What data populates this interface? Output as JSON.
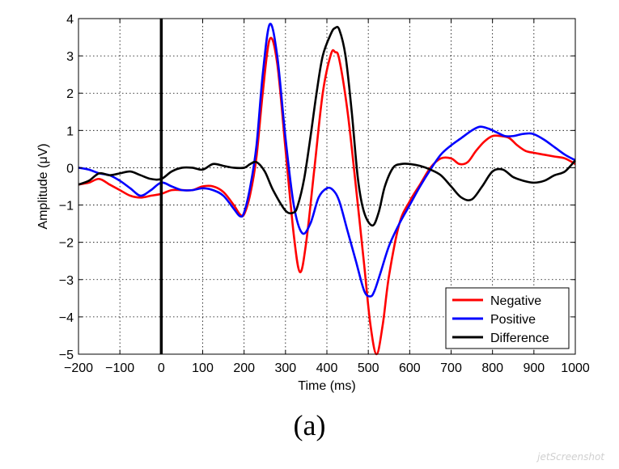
{
  "caption": "(a)",
  "watermark": "jetScreenshot",
  "chart_data": {
    "type": "line",
    "xlabel": "Time (ms)",
    "ylabel": "Amplitude (μV)",
    "xlim": [
      -200,
      1000
    ],
    "ylim": [
      -5,
      4
    ],
    "xticks": [
      -200,
      -100,
      0,
      100,
      200,
      300,
      400,
      500,
      600,
      700,
      800,
      900,
      1000
    ],
    "yticks": [
      -5,
      -4,
      -3,
      -2,
      -1,
      0,
      1,
      2,
      3,
      4
    ],
    "xtick_labels": [
      "−200",
      "−100",
      "0",
      "100",
      "200",
      "300",
      "400",
      "500",
      "600",
      "700",
      "800",
      "900",
      "1000"
    ],
    "ytick_labels": [
      "−5",
      "−4",
      "−3",
      "−2",
      "−1",
      "0",
      "1",
      "2",
      "3",
      "4"
    ],
    "grid": true,
    "legend_position": "bottom-right",
    "vline_x": 0,
    "series": [
      {
        "name": "Negative",
        "color": "#ff0000",
        "x": [
          -200,
          -175,
          -150,
          -125,
          -100,
          -75,
          -50,
          -25,
          0,
          25,
          50,
          75,
          100,
          125,
          150,
          175,
          190,
          200,
          215,
          230,
          245,
          262,
          280,
          300,
          320,
          335,
          350,
          370,
          390,
          410,
          420,
          430,
          450,
          470,
          490,
          505,
          520,
          535,
          550,
          575,
          600,
          625,
          650,
          675,
          700,
          720,
          740,
          760,
          780,
          800,
          820,
          840,
          860,
          880,
          900,
          925,
          950,
          975,
          1000
        ],
        "y": [
          -0.45,
          -0.4,
          -0.3,
          -0.45,
          -0.6,
          -0.75,
          -0.8,
          -0.75,
          -0.7,
          -0.6,
          -0.6,
          -0.6,
          -0.5,
          -0.5,
          -0.65,
          -1.0,
          -1.25,
          -1.25,
          -0.7,
          0.3,
          2.0,
          3.45,
          2.8,
          0.5,
          -1.8,
          -2.8,
          -2.0,
          0.0,
          2.0,
          3.05,
          3.1,
          2.9,
          1.5,
          -0.5,
          -2.6,
          -4.2,
          -5.0,
          -4.2,
          -2.9,
          -1.5,
          -0.9,
          -0.45,
          0.0,
          0.25,
          0.25,
          0.1,
          0.15,
          0.45,
          0.7,
          0.85,
          0.85,
          0.8,
          0.6,
          0.45,
          0.4,
          0.35,
          0.3,
          0.25,
          0.1
        ]
      },
      {
        "name": "Positive",
        "color": "#0000ff",
        "x": [
          -200,
          -175,
          -150,
          -125,
          -100,
          -75,
          -50,
          -25,
          0,
          25,
          50,
          75,
          100,
          125,
          150,
          175,
          190,
          200,
          215,
          230,
          245,
          262,
          280,
          300,
          320,
          340,
          360,
          380,
          400,
          415,
          430,
          450,
          470,
          490,
          505,
          515,
          530,
          550,
          575,
          600,
          625,
          650,
          675,
          700,
          725,
          750,
          770,
          790,
          810,
          830,
          850,
          870,
          885,
          900,
          925,
          950,
          975,
          1000
        ],
        "y": [
          0.0,
          -0.05,
          -0.15,
          -0.2,
          -0.35,
          -0.55,
          -0.75,
          -0.6,
          -0.4,
          -0.5,
          -0.6,
          -0.6,
          -0.55,
          -0.6,
          -0.75,
          -1.1,
          -1.3,
          -1.2,
          -0.5,
          0.6,
          2.5,
          3.85,
          3.0,
          0.8,
          -1.0,
          -1.75,
          -1.5,
          -0.8,
          -0.55,
          -0.6,
          -0.9,
          -1.7,
          -2.5,
          -3.3,
          -3.45,
          -3.3,
          -2.8,
          -2.1,
          -1.5,
          -1.0,
          -0.5,
          -0.05,
          0.35,
          0.6,
          0.8,
          1.0,
          1.1,
          1.05,
          0.95,
          0.85,
          0.85,
          0.9,
          0.92,
          0.9,
          0.75,
          0.55,
          0.35,
          0.2
        ]
      },
      {
        "name": "Difference",
        "color": "#000000",
        "x": [
          -200,
          -175,
          -150,
          -125,
          -100,
          -75,
          -50,
          -25,
          0,
          25,
          50,
          75,
          100,
          125,
          150,
          175,
          200,
          215,
          230,
          250,
          270,
          300,
          320,
          330,
          345,
          360,
          375,
          390,
          410,
          420,
          430,
          445,
          460,
          475,
          490,
          510,
          525,
          540,
          560,
          580,
          600,
          625,
          650,
          675,
          700,
          725,
          750,
          775,
          800,
          825,
          850,
          875,
          900,
          925,
          950,
          975,
          1000
        ],
        "y": [
          -0.45,
          -0.35,
          -0.15,
          -0.2,
          -0.15,
          -0.1,
          -0.2,
          -0.3,
          -0.3,
          -0.1,
          0.0,
          0.0,
          -0.05,
          0.1,
          0.05,
          0.0,
          0.0,
          0.1,
          0.15,
          -0.1,
          -0.6,
          -1.15,
          -1.2,
          -1.0,
          -0.3,
          0.8,
          2.0,
          3.0,
          3.6,
          3.75,
          3.7,
          3.0,
          1.5,
          -0.3,
          -1.2,
          -1.55,
          -1.2,
          -0.5,
          0.0,
          0.1,
          0.1,
          0.05,
          -0.05,
          -0.2,
          -0.5,
          -0.8,
          -0.85,
          -0.5,
          -0.1,
          -0.05,
          -0.25,
          -0.35,
          -0.4,
          -0.35,
          -0.2,
          -0.1,
          0.2
        ]
      }
    ]
  }
}
